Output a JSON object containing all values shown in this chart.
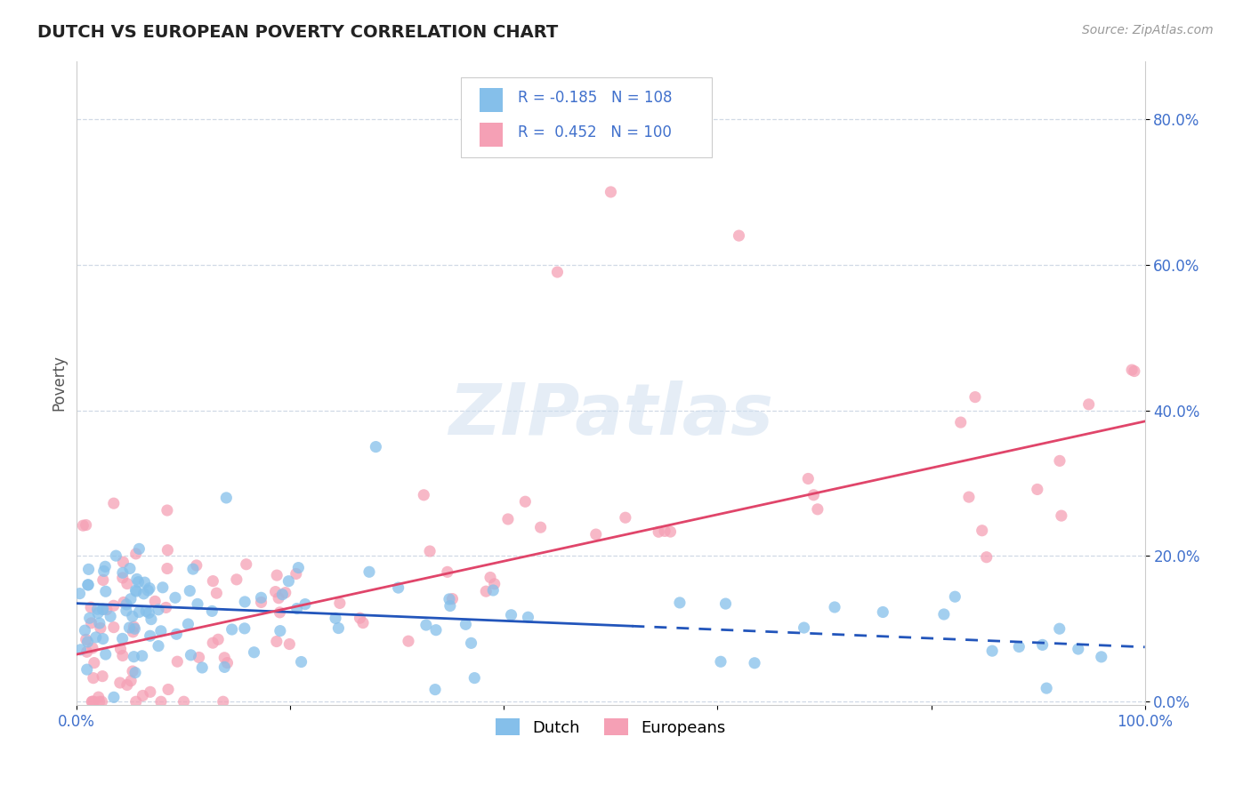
{
  "title": "DUTCH VS EUROPEAN POVERTY CORRELATION CHART",
  "source": "Source: ZipAtlas.com",
  "ylabel": "Poverty",
  "xlim": [
    0.0,
    1.0
  ],
  "ylim": [
    -0.005,
    0.88
  ],
  "yticks": [
    0.0,
    0.2,
    0.4,
    0.6,
    0.8
  ],
  "ytick_labels": [
    "0.0%",
    "20.0%",
    "40.0%",
    "60.0%",
    "80.0%"
  ],
  "xticks": [
    0.0,
    0.2,
    0.4,
    0.6,
    0.8,
    1.0
  ],
  "xtick_labels": [
    "0.0%",
    "",
    "",
    "",
    "",
    "100.0%"
  ],
  "dutch_color": "#85BFEA",
  "european_color": "#F5A0B5",
  "dutch_line_color": "#2255BB",
  "european_line_color": "#E0456A",
  "tick_color": "#4070CC",
  "background_color": "#ffffff",
  "watermark": "ZIPatlas",
  "dutch_line_x0": 0.0,
  "dutch_line_y0": 0.135,
  "dutch_line_x1": 1.0,
  "dutch_line_y1": 0.075,
  "dutch_line_solid_end": 0.52,
  "euro_line_x0": 0.0,
  "euro_line_y0": 0.065,
  "euro_line_x1": 1.0,
  "euro_line_y1": 0.385
}
